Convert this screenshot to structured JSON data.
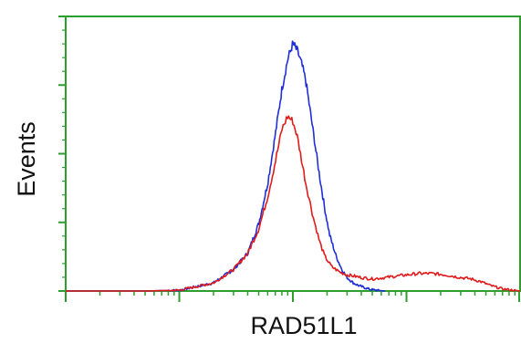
{
  "chart_data": {
    "type": "line",
    "title": "",
    "xlabel": "RAD51L1",
    "ylabel": "Events",
    "xscale": "log",
    "xlim": [
      1,
      10000
    ],
    "ylim": [
      0,
      1
    ],
    "grid": false,
    "legend": "none",
    "frame_color": "#2e9e2e",
    "series": [
      {
        "color": "#1f2fd6",
        "x": [
          1,
          5,
          10,
          20,
          30,
          40,
          50,
          60,
          70,
          80,
          90,
          100,
          110,
          120,
          130,
          150,
          170,
          190,
          210,
          240,
          270,
          300,
          340,
          380,
          430,
          480,
          540,
          600,
          650
        ],
        "y": [
          0.0,
          0.0,
          0.003,
          0.03,
          0.08,
          0.14,
          0.25,
          0.4,
          0.58,
          0.75,
          0.86,
          0.92,
          0.89,
          0.84,
          0.78,
          0.6,
          0.44,
          0.31,
          0.21,
          0.13,
          0.08,
          0.05,
          0.03,
          0.02,
          0.012,
          0.006,
          0.003,
          0.001,
          0.0
        ]
      },
      {
        "color": "#e01b1b",
        "x": [
          1,
          5,
          10,
          20,
          30,
          40,
          50,
          60,
          70,
          80,
          90,
          100,
          110,
          120,
          130,
          150,
          170,
          190,
          220,
          260,
          300,
          350,
          400,
          500,
          650,
          800,
          1000,
          1300,
          1700,
          2200,
          3000,
          3700,
          4500,
          5500,
          7000,
          10000
        ],
        "y": [
          0.0,
          0.0,
          0.003,
          0.03,
          0.08,
          0.14,
          0.23,
          0.35,
          0.48,
          0.6,
          0.65,
          0.63,
          0.57,
          0.48,
          0.4,
          0.28,
          0.19,
          0.13,
          0.09,
          0.07,
          0.06,
          0.055,
          0.05,
          0.045,
          0.05,
          0.055,
          0.06,
          0.065,
          0.065,
          0.06,
          0.05,
          0.045,
          0.035,
          0.02,
          0.008,
          0.0
        ]
      }
    ]
  }
}
